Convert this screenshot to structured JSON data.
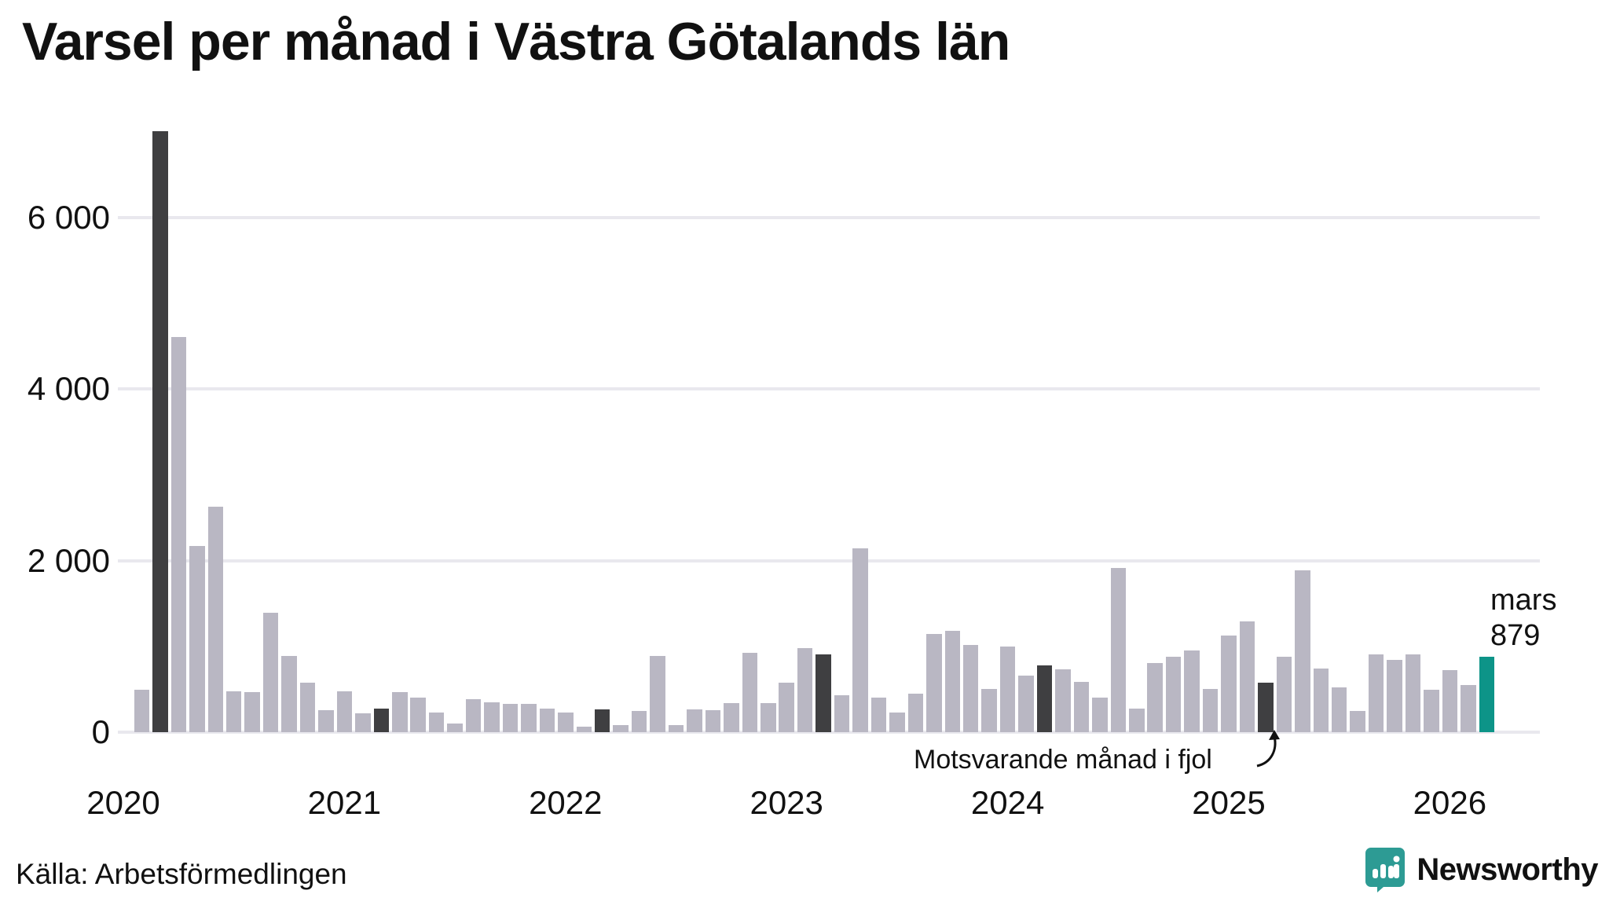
{
  "title": "Varsel per månad i Västra Götalands län",
  "source_note": "Källa: Arbetsförmedlingen",
  "branding": {
    "name": "Newsworthy",
    "color": "#2d9b94",
    "icon": "bar-chart-speech-bubble"
  },
  "annotations": {
    "comparison_text": "Motsvarande månad i fjol",
    "latest_month_label": "mars",
    "latest_value_label": "879"
  },
  "colors": {
    "bar_normal": "#b9b7c3",
    "bar_march_dark": "#3f3f41",
    "bar_current_teal": "#0d9488",
    "gridline": "#e9e8ee",
    "text": "#111111",
    "background": "#ffffff"
  },
  "chart_data": {
    "type": "bar",
    "title": "Varsel per månad i Västra Götalands län",
    "xlabel": "",
    "ylabel": "",
    "x_start": "2020-01",
    "x_end": "2026-03",
    "ylim": [
      0,
      7340
    ],
    "grid": "horizontal",
    "y_ticks": [
      {
        "value": 0,
        "label": "0"
      },
      {
        "value": 2000,
        "label": "2 000"
      },
      {
        "value": 4000,
        "label": "4 000"
      },
      {
        "value": 6000,
        "label": "6 000"
      }
    ],
    "year_labels": [
      "2020",
      "2021",
      "2022",
      "2023",
      "2024",
      "2025",
      "2026"
    ],
    "values": [
      0,
      490,
      7000,
      4600,
      2170,
      2630,
      480,
      465,
      1390,
      890,
      575,
      255,
      475,
      220,
      275,
      465,
      400,
      230,
      100,
      385,
      350,
      330,
      330,
      275,
      230,
      60,
      265,
      80,
      245,
      890,
      80,
      270,
      260,
      335,
      920,
      335,
      580,
      980,
      905,
      430,
      2140,
      400,
      225,
      445,
      1140,
      1180,
      1015,
      500,
      1000,
      660,
      775,
      730,
      590,
      405,
      1910,
      275,
      810,
      875,
      950,
      500,
      1125,
      1290,
      580,
      875,
      1890,
      740,
      525,
      245,
      910,
      845,
      910,
      495,
      725,
      550,
      879
    ],
    "march_dark_indices": [
      2,
      14,
      26,
      38,
      50,
      62
    ],
    "current_index": 74,
    "current_value": 879,
    "legend": "none"
  }
}
